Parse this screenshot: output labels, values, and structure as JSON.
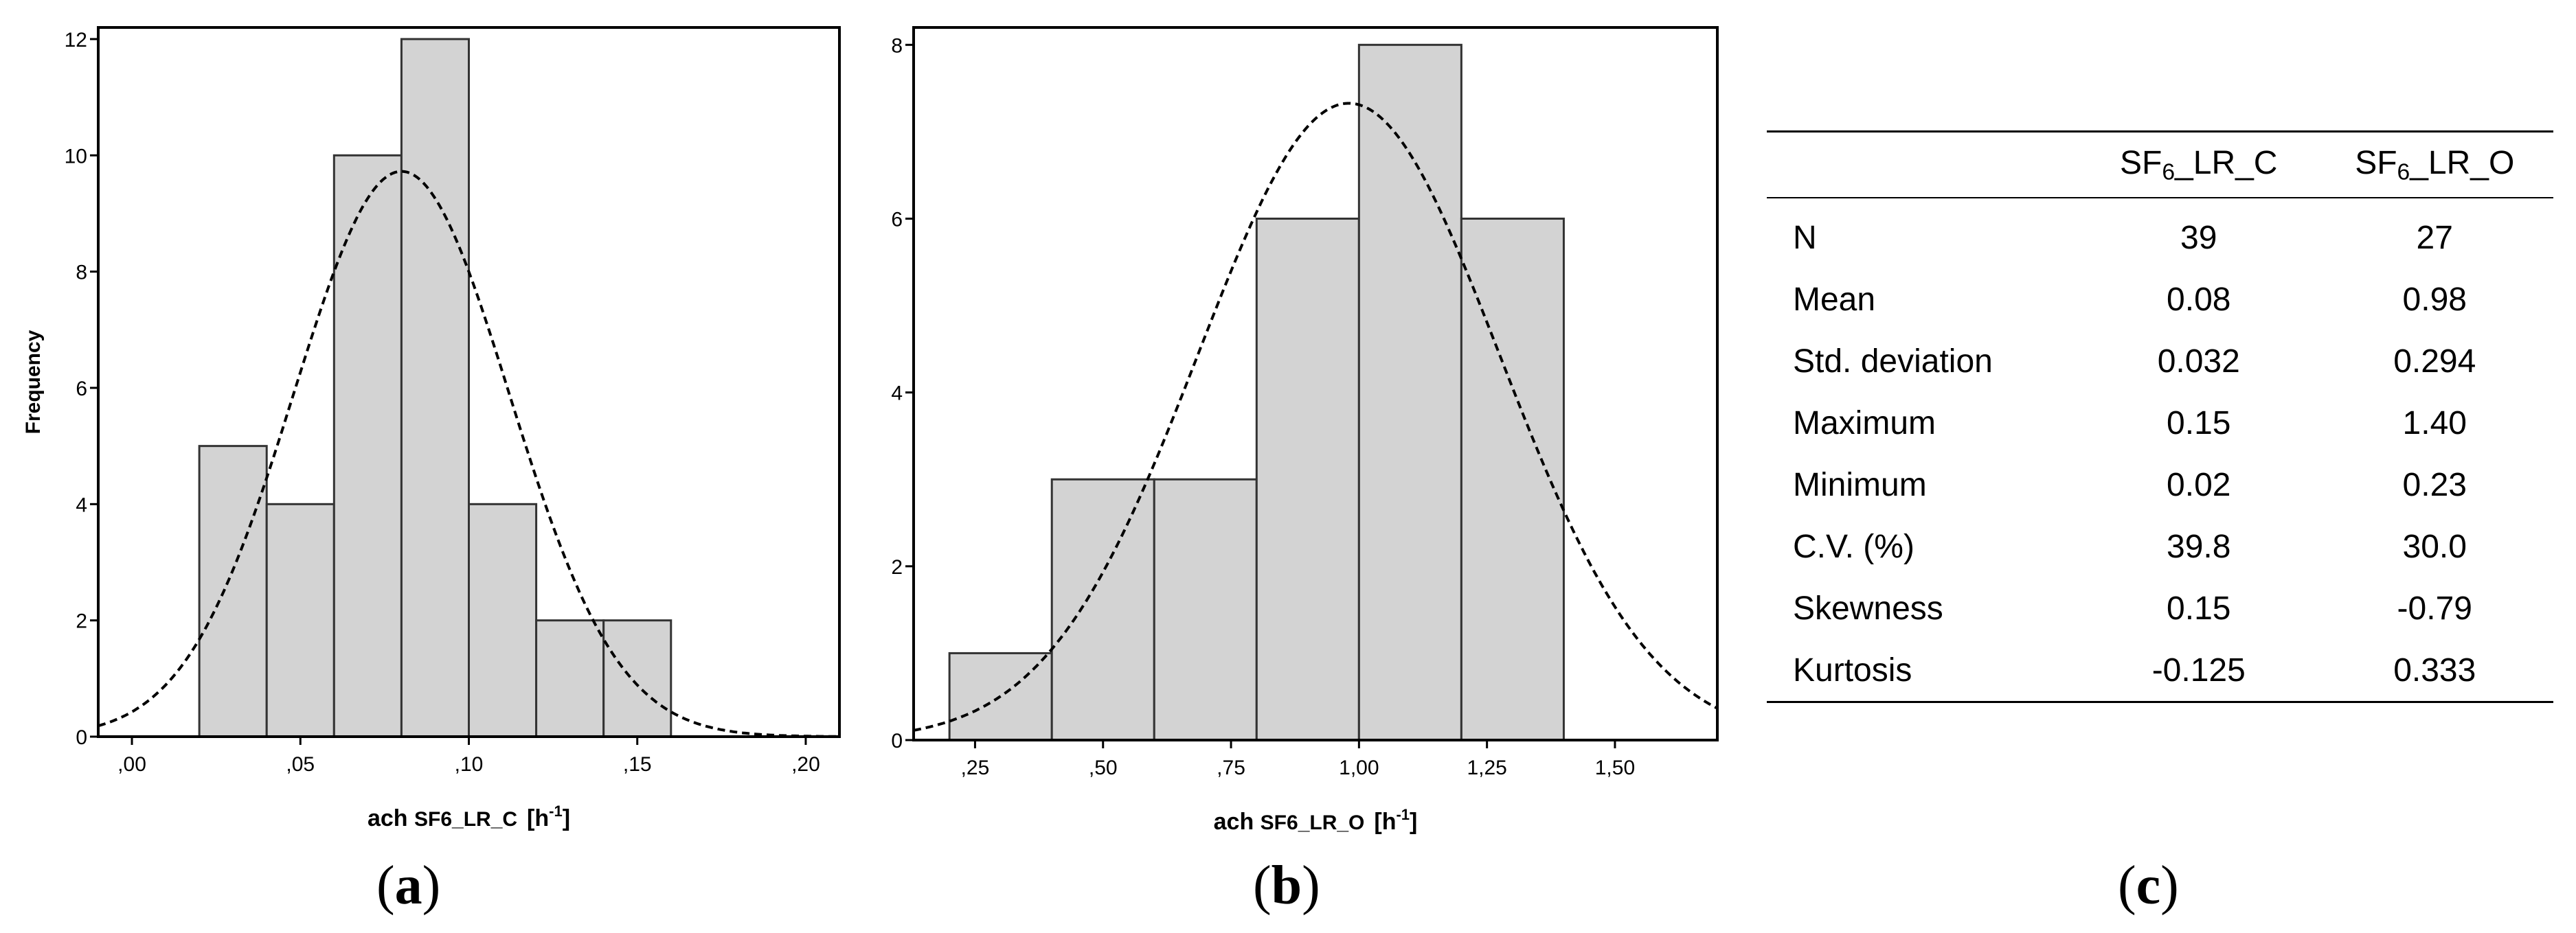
{
  "chart_data": [
    {
      "type": "bar",
      "panel": "(a)",
      "bin_edges": [
        0.02,
        0.04,
        0.06,
        0.08,
        0.1,
        0.12,
        0.14,
        0.16
      ],
      "values": [
        5,
        4,
        10,
        12,
        4,
        2,
        2
      ],
      "normal_curve": {
        "mean": 0.08,
        "sd": 0.032,
        "n": 39,
        "bin_width": 0.02
      },
      "xlabel": "ach SF6_LR_C [h-1]",
      "ylabel": "Frequency",
      "xlim": [
        -0.01,
        0.21
      ],
      "ylim": [
        0,
        12.2
      ],
      "xticks": [
        0.0,
        0.05,
        0.1,
        0.15,
        0.2
      ],
      "xtick_labels": [
        ",00",
        ",05",
        ",10",
        ",15",
        ",20"
      ],
      "yticks": [
        0,
        2,
        4,
        6,
        8,
        10,
        12
      ],
      "ytick_labels": [
        "0",
        "2",
        "4",
        "6",
        "8",
        "10",
        "12"
      ],
      "bar_color": "#d3d3d3",
      "grid": false,
      "legend": "none"
    },
    {
      "type": "bar",
      "panel": "(b)",
      "bin_edges": [
        0.2,
        0.4,
        0.6,
        0.8,
        1.0,
        1.2,
        1.4
      ],
      "values": [
        1,
        3,
        3,
        6,
        8,
        6
      ],
      "normal_curve": {
        "mean": 0.98,
        "sd": 0.294,
        "n": 27,
        "bin_width": 0.2
      },
      "xlabel": "ach SF6_LR_O [h-1]",
      "ylabel": "Frequency",
      "xlim": [
        0.13,
        1.7
      ],
      "ylim": [
        0,
        8.2
      ],
      "xticks": [
        0.25,
        0.5,
        0.75,
        1.0,
        1.25,
        1.5
      ],
      "xtick_labels": [
        ",25",
        ",50",
        ",75",
        "1,00",
        "1,25",
        "1,50"
      ],
      "yticks": [
        0,
        2,
        4,
        6,
        8
      ],
      "ytick_labels": [
        "0",
        "2",
        "4",
        "6",
        "8"
      ],
      "bar_color": "#d3d3d3",
      "grid": false,
      "legend": "none"
    },
    {
      "type": "table",
      "panel": "(c)",
      "columns": [
        "",
        "SF6_LR_C",
        "SF6_LR_O"
      ],
      "rows": [
        [
          "N",
          "39",
          "27"
        ],
        [
          "Mean",
          "0.08",
          "0.98"
        ],
        [
          "Std. deviation",
          "0.032",
          "0.294"
        ],
        [
          "Maximum",
          "0.15",
          "1.40"
        ],
        [
          "Minimum",
          "0.02",
          "0.23"
        ],
        [
          "C.V. (%)",
          "39.8",
          "30.0"
        ],
        [
          "Skewness",
          "0.15",
          "-0.79"
        ],
        [
          "Kurtosis",
          "-0.125",
          "0.333"
        ]
      ]
    }
  ],
  "labels": {
    "a_xlabel_pre": "ach ",
    "a_xlabel_var": "SF6_LR_C",
    "b_xlabel_pre": "ach ",
    "b_xlabel_var": "SF6_LR_O",
    "xlabel_unit_open": "[h",
    "xlabel_unit_sup": "-1",
    "xlabel_unit_close": "]",
    "ylabel": "Frequency",
    "caption_a": "a",
    "caption_b": "b",
    "caption_c": "c",
    "table_col1_prefix": "SF",
    "table_col_sub": "6",
    "table_col1_suffix": "_LR_C",
    "table_col2_suffix": "_LR_O"
  }
}
